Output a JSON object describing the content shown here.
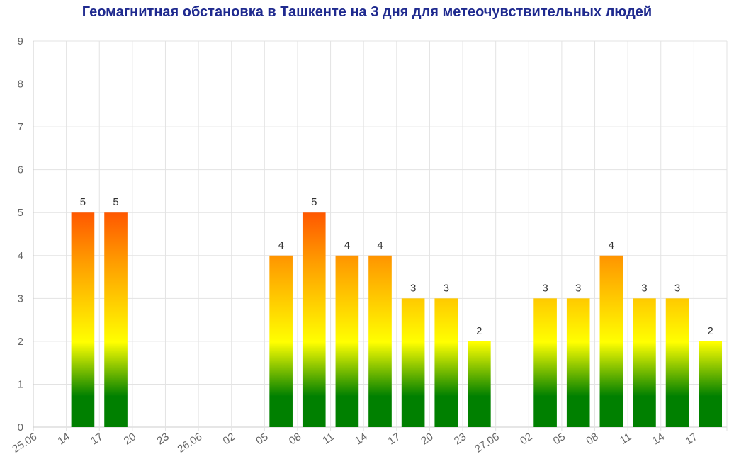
{
  "chart_data": {
    "type": "bar",
    "title": "Геомагнитная обстановка в Ташкенте на 3 дня для метеочувствительных людей",
    "categories": [
      "25.06",
      "14",
      "17",
      "20",
      "23",
      "26.06",
      "02",
      "05",
      "08",
      "11",
      "14",
      "17",
      "20",
      "23",
      "27.06",
      "02",
      "05",
      "08",
      "11",
      "14",
      "17"
    ],
    "values": [
      null,
      5,
      5,
      null,
      null,
      null,
      null,
      4,
      5,
      4,
      4,
      3,
      3,
      2,
      null,
      3,
      3,
      4,
      3,
      3,
      2
    ],
    "ylim": [
      0,
      9
    ],
    "yticks": [
      "0",
      "1",
      "2",
      "3",
      "4",
      "5",
      "6",
      "7",
      "8",
      "9"
    ],
    "xlabel": "",
    "ylabel": "",
    "grid": true,
    "colors": {
      "gradient_top": "#ff5500",
      "gradient_mid_orange": "#ffa000",
      "gradient_yellow": "#ffff00",
      "gradient_bottom": "#008000",
      "title": "#1f2a8f"
    }
  }
}
